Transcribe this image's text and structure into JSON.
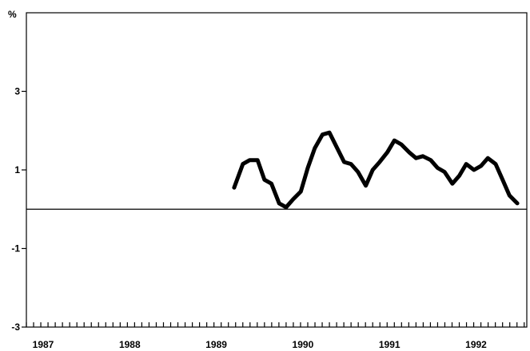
{
  "chart_data": {
    "type": "line",
    "title": "",
    "xlabel": "",
    "ylabel": "%",
    "ylim": [
      -3,
      5
    ],
    "xlim": [
      1987.0,
      1992.78
    ],
    "y_ticks": [
      -3,
      -1,
      1,
      3
    ],
    "y_tick_labels": [
      "-3",
      "-1",
      "1",
      "3"
    ],
    "x_ticks": [
      1987,
      1988,
      1989,
      1990,
      1991,
      1992
    ],
    "x_tick_labels": [
      "1987",
      "1988",
      "1989",
      "1990",
      "1991",
      "1992"
    ],
    "minor_ticks_per_year": 12,
    "reference_line_y": 0,
    "grid": false,
    "series": [
      {
        "color": "#000000",
        "x": [
          1989.4,
          1989.5,
          1989.58,
          1989.67,
          1989.75,
          1989.83,
          1989.92,
          1990.0,
          1990.08,
          1990.17,
          1990.25,
          1990.33,
          1990.42,
          1990.5,
          1990.58,
          1990.67,
          1990.75,
          1990.83,
          1990.92,
          1991.0,
          1991.08,
          1991.17,
          1991.25,
          1991.33,
          1991.42,
          1991.5,
          1991.58,
          1991.67,
          1991.75,
          1991.83,
          1991.92,
          1992.0,
          1992.08,
          1992.17,
          1992.25,
          1992.33,
          1992.42,
          1992.5,
          1992.58,
          1992.67
        ],
        "y": [
          0.55,
          1.15,
          1.25,
          1.25,
          0.75,
          0.65,
          0.15,
          0.05,
          0.25,
          0.45,
          1.05,
          1.55,
          1.9,
          1.95,
          1.6,
          1.2,
          1.15,
          0.95,
          0.6,
          1.0,
          1.2,
          1.45,
          1.75,
          1.65,
          1.45,
          1.3,
          1.35,
          1.25,
          1.05,
          0.95,
          0.65,
          0.85,
          1.15,
          1.0,
          1.1,
          1.3,
          1.15,
          0.75,
          0.35,
          0.15
        ]
      }
    ]
  }
}
